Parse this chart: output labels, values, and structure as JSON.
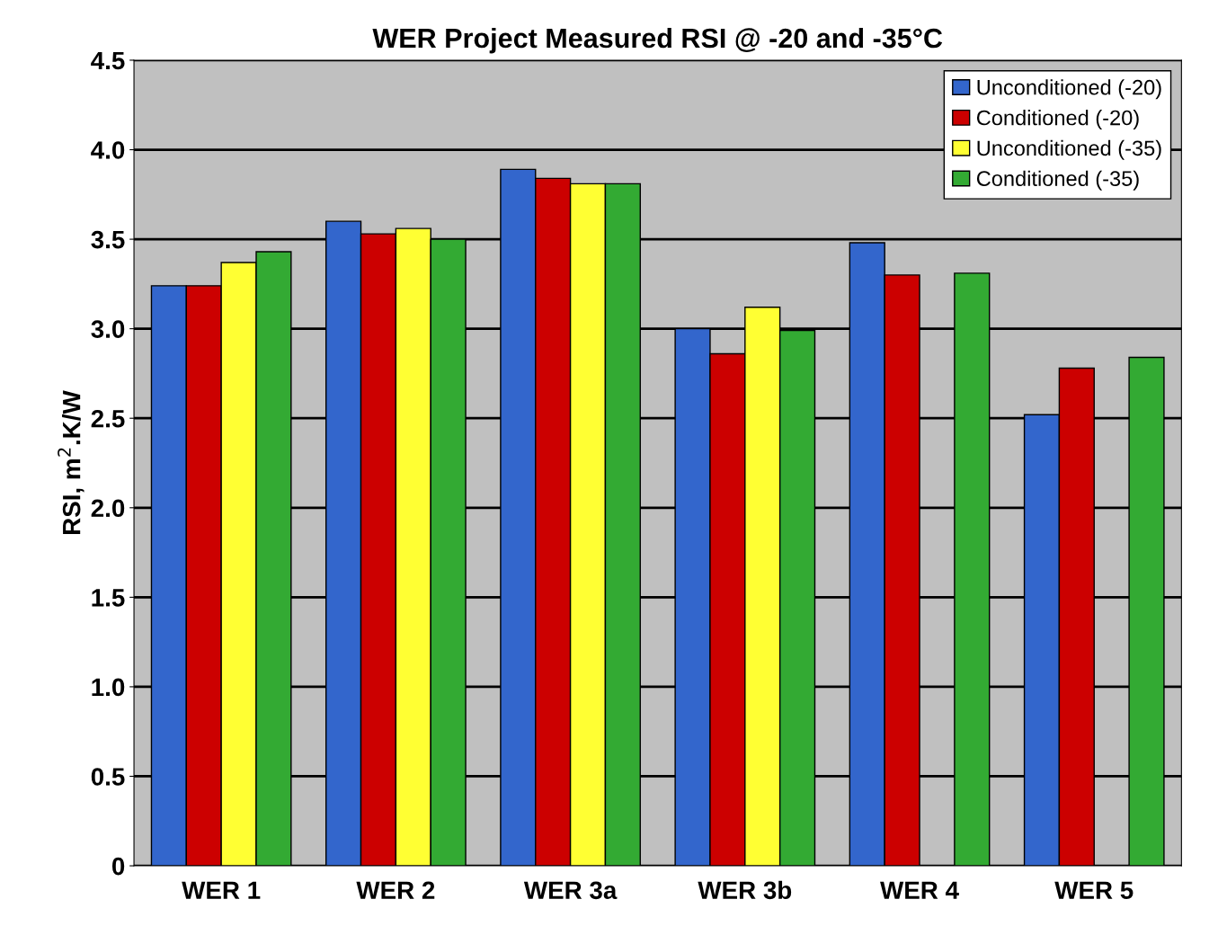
{
  "chart_data": {
    "type": "bar",
    "title": "WER Project Measured RSI @ -20 and -35°C",
    "ylabel": "RSI, m$^{2}$.K/W",
    "categories": [
      "WER 1",
      "WER 2",
      "WER 3a",
      "WER 3b",
      "WER 4",
      "WER 5"
    ],
    "series": [
      {
        "name": "Unconditioned (-20)",
        "color": "#3366cc",
        "values": [
          3.24,
          3.6,
          3.89,
          3.0,
          3.48,
          2.52
        ]
      },
      {
        "name": "Conditioned (-20)",
        "color": "#cc0000",
        "values": [
          3.24,
          3.53,
          3.84,
          2.86,
          3.3,
          2.78
        ]
      },
      {
        "name": "Unconditioned (-35)",
        "color": "#ffff33",
        "values": [
          3.37,
          3.56,
          3.81,
          3.12,
          null,
          null
        ]
      },
      {
        "name": "Conditioned (-35)",
        "color": "#33aa33",
        "values": [
          3.43,
          3.5,
          3.81,
          2.99,
          3.31,
          2.84
        ]
      }
    ],
    "ylim": [
      0,
      4.5
    ],
    "yticks": [
      0,
      {
        "value": 0.5,
        "label": "0.5"
      },
      {
        "value": 1,
        "label": "1.0"
      },
      {
        "value": 1.5,
        "label": "1.5"
      },
      {
        "value": 2,
        "label": "2.0"
      },
      {
        "value": 2.5,
        "label": "2.5"
      },
      {
        "value": 3,
        "label": "3.0"
      },
      {
        "value": 3.5,
        "label": "3.5"
      },
      {
        "value": 4,
        "label": "4.0"
      },
      {
        "value": 4.5,
        "label": "4.5"
      }
    ],
    "grid": "y",
    "legend": "top right"
  }
}
